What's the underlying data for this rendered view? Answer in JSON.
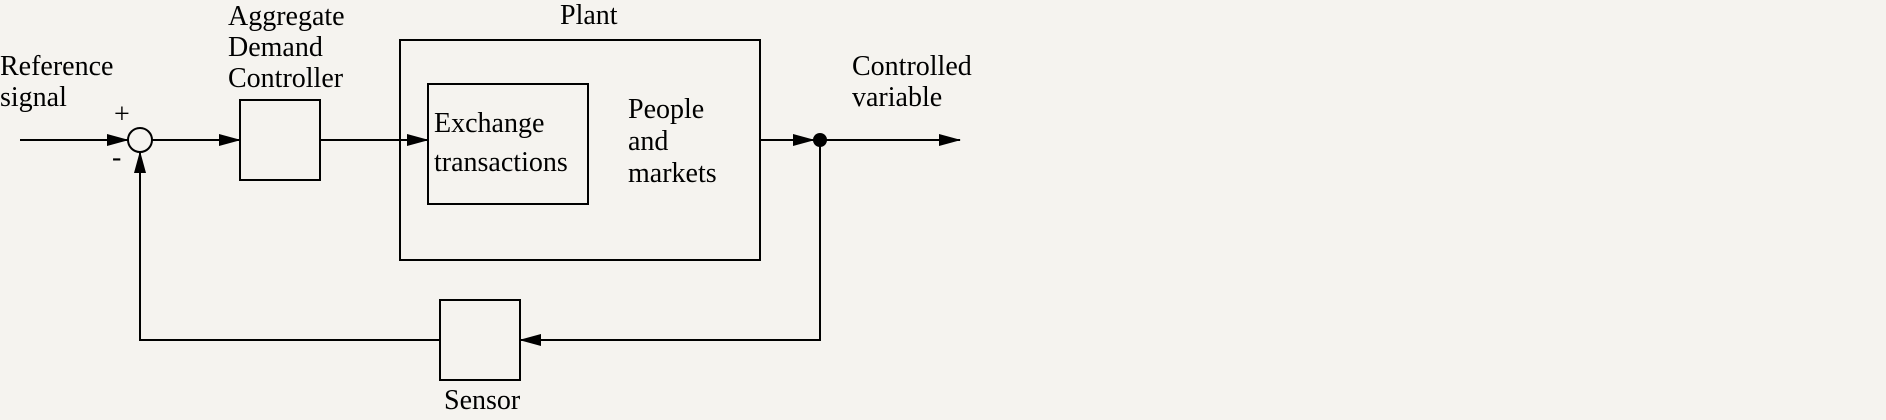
{
  "colors": {
    "background": "#f5f3ef",
    "stroke": "#000000"
  },
  "labels": {
    "reference": [
      "Reference",
      "signal"
    ],
    "plus": "+",
    "minus": "-",
    "controller": [
      "Aggregate",
      "Demand",
      "Controller"
    ],
    "plant": "Plant",
    "exchange": [
      "Exchange",
      "transactions"
    ],
    "people": [
      "People",
      "and",
      "markets"
    ],
    "controlled": [
      "Controlled",
      "variable"
    ],
    "sensor": "Sensor"
  }
}
